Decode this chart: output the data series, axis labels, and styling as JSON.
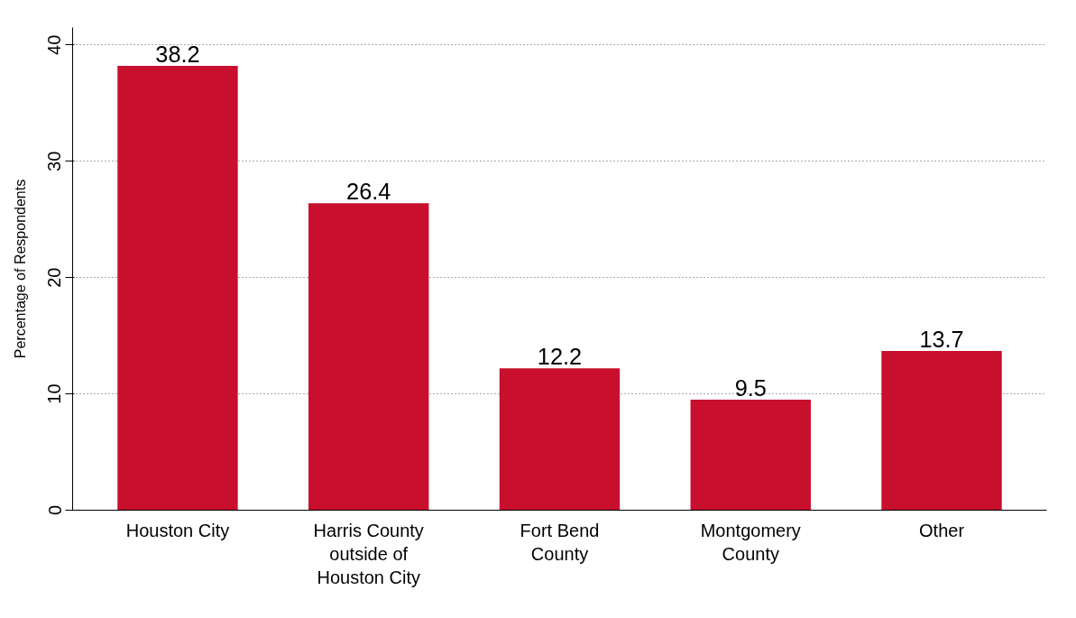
{
  "chart_data": {
    "type": "bar",
    "ylabel": "Percentage of Respondents",
    "categories": [
      "Houston City",
      "Harris County outside of Houston City",
      "Fort Bend County",
      "Montgomery County",
      "Other"
    ],
    "values": [
      38.2,
      26.4,
      12.2,
      9.5,
      13.7
    ],
    "color": "#c8102e",
    "ylim": [
      0,
      41.5
    ],
    "yticks": [
      0,
      10,
      20,
      30,
      40
    ],
    "grid": "y",
    "data_labels": true
  }
}
